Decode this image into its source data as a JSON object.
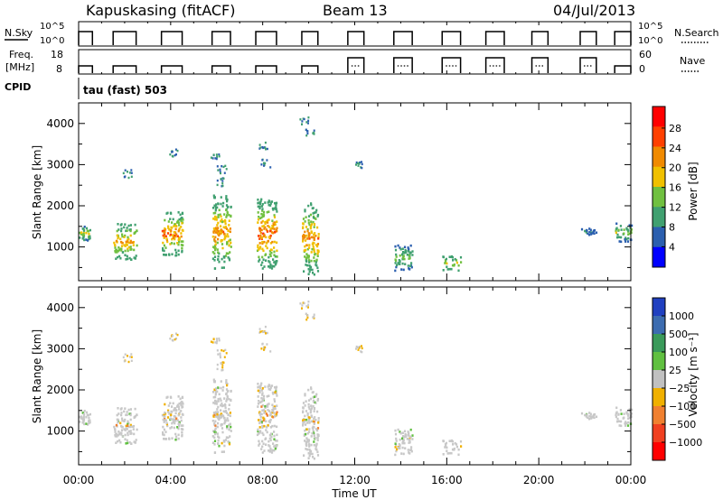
{
  "header": {
    "station": "Kapuskasing (fitACF)",
    "beam": "Beam 13",
    "date": "04/Jul/2013"
  },
  "aux_panels": {
    "nsky": {
      "label": "N.Sky",
      "ticks": [
        "10^5",
        "10^0"
      ]
    },
    "nsearch": {
      "label": "N.Search",
      "ticks": [
        "10^5",
        "10^0"
      ]
    },
    "freq": {
      "label_line1": "Freq.",
      "label_line2": "[MHz]",
      "ticks": [
        "18",
        "8"
      ]
    },
    "nave": {
      "label": "Nave",
      "ticks": [
        "60",
        "0"
      ]
    },
    "cpid": {
      "label": "CPID",
      "value": "tau (fast) 503"
    }
  },
  "power_colorbar": {
    "label": "Power [dB]",
    "ticks": [
      "28",
      "24",
      "20",
      "16",
      "12",
      "8",
      "4"
    ],
    "colors": [
      "#ff0000",
      "#ff4000",
      "#f08a00",
      "#f0c000",
      "#70c040",
      "#40a070",
      "#2b5faf",
      "#0000ff"
    ]
  },
  "velocity_colorbar": {
    "label": "Velocity [m s⁻¹]",
    "ticks": [
      "1000",
      "500",
      "100",
      "25",
      "−25",
      "−100",
      "−500",
      "−1000"
    ],
    "colors": [
      "#2040c0",
      "#3c6cb0",
      "#3a9a5a",
      "#60c040",
      "#c0c0c0",
      "#f0b000",
      "#f08030",
      "#f04020",
      "#ff0000"
    ]
  },
  "chart_data": [
    {
      "type": "heatmap",
      "title": "Power",
      "xlabel": "Time UT",
      "ylabel": "Slant Range [km]",
      "x_ticks": [
        "00:00",
        "04:00",
        "08:00",
        "12:00",
        "16:00",
        "20:00",
        "00:00"
      ],
      "y_ticks": [
        "1000",
        "2000",
        "3000",
        "4000"
      ],
      "xlim_hours": [
        0,
        24
      ],
      "ylim_km": [
        180,
        4500
      ],
      "units": "dB",
      "scatter_regions": [
        {
          "t0": 0.0,
          "t1": 0.6,
          "r0": 1150,
          "r1": 1550,
          "min_db": 6,
          "max_db": 20
        },
        {
          "t0": 1.5,
          "t1": 2.5,
          "r0": 700,
          "r1": 1600,
          "min_db": 8,
          "max_db": 24
        },
        {
          "t0": 3.6,
          "t1": 4.5,
          "r0": 800,
          "r1": 1900,
          "min_db": 8,
          "max_db": 28
        },
        {
          "t0": 5.8,
          "t1": 6.6,
          "r0": 500,
          "r1": 2300,
          "min_db": 8,
          "max_db": 26
        },
        {
          "t0": 7.7,
          "t1": 8.6,
          "r0": 500,
          "r1": 2200,
          "min_db": 8,
          "max_db": 30
        },
        {
          "t0": 9.7,
          "t1": 10.4,
          "r0": 350,
          "r1": 2100,
          "min_db": 8,
          "max_db": 26
        },
        {
          "t0": 13.7,
          "t1": 14.5,
          "r0": 450,
          "r1": 1100,
          "min_db": 6,
          "max_db": 16
        },
        {
          "t0": 15.8,
          "t1": 16.6,
          "r0": 450,
          "r1": 800,
          "min_db": 8,
          "max_db": 20
        },
        {
          "t0": 21.8,
          "t1": 22.5,
          "r0": 1300,
          "r1": 1500,
          "min_db": 4,
          "max_db": 10
        },
        {
          "t0": 23.3,
          "t1": 24.0,
          "r0": 1150,
          "r1": 1600,
          "min_db": 6,
          "max_db": 18
        }
      ]
    },
    {
      "type": "heatmap",
      "title": "Velocity",
      "xlabel": "Time UT",
      "ylabel": "Slant Range [km]",
      "x_ticks": [
        "00:00",
        "04:00",
        "08:00",
        "12:00",
        "16:00",
        "20:00",
        "00:00"
      ],
      "y_ticks": [
        "1000",
        "2000",
        "3000",
        "4000"
      ],
      "xlim_hours": [
        0,
        24
      ],
      "ylim_km": [
        180,
        4500
      ],
      "units": "m s^-1",
      "dominant_velocity_bin": "-25 to 25"
    }
  ],
  "operating_time_blocks_hours": [
    [
      0.0,
      0.6
    ],
    [
      1.5,
      2.5
    ],
    [
      3.6,
      4.5
    ],
    [
      5.8,
      6.6
    ],
    [
      7.7,
      8.6
    ],
    [
      9.7,
      10.4
    ],
    [
      11.7,
      12.4
    ],
    [
      13.7,
      14.5
    ],
    [
      15.8,
      16.6
    ],
    [
      17.7,
      18.5
    ],
    [
      19.7,
      20.4
    ],
    [
      21.8,
      22.5
    ],
    [
      23.3,
      24.0
    ]
  ]
}
